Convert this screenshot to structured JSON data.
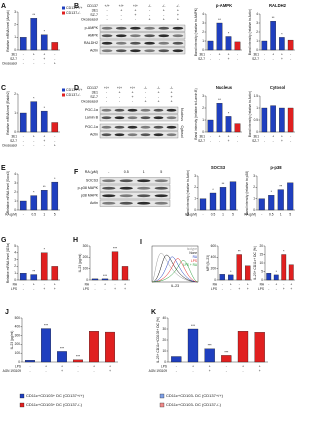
{
  "chart_data": [
    {
      "type": "bar",
      "panel": "A",
      "ylabel": "Relative mRNA level (Ampk)",
      "ylim": [
        0,
        3
      ],
      "yticks": [
        0,
        1,
        2,
        3
      ],
      "series": [
        {
          "name": "CD137+/+",
          "color": "#1f3fbf",
          "values": [
            1,
            2.5,
            1.2,
            null
          ]
        },
        {
          "name": "CD137-/-",
          "color": "#e02020",
          "values": [
            null,
            null,
            null,
            0.6
          ]
        }
      ],
      "conditions": [
        {
          "label": "3E1",
          "marks": [
            "-",
            "+",
            "+",
            "-"
          ]
        },
        {
          "label": "SZ-7",
          "marks": [
            "-",
            "-",
            "+",
            "-"
          ]
        },
        {
          "label": "Oxozeasol",
          "marks": [
            "-",
            "-",
            "-",
            "+"
          ]
        }
      ],
      "annotations": [
        "**",
        "*"
      ]
    },
    {
      "type": "blot",
      "panel": "B",
      "header": {
        "label": "CD137",
        "lanes": [
          "+/+",
          "+/+",
          "+/+",
          "-/-",
          "-/-",
          "-/-"
        ]
      },
      "conditions": [
        {
          "label": "3E1",
          "marks": [
            "-",
            "+",
            "+",
            "-",
            "+",
            "+"
          ]
        },
        {
          "label": "SZ-7",
          "marks": [
            "-",
            "-",
            "+",
            "-",
            "-",
            "+"
          ]
        },
        {
          "label": "Oxozeasol",
          "marks": [
            "-",
            "-",
            "-",
            "+",
            "+",
            "+"
          ]
        }
      ],
      "sections": [
        {
          "rows": [
            "p-AMPK",
            "AMPK",
            "RALDH2",
            "Actin"
          ]
        }
      ]
    },
    {
      "type": "bar",
      "title": "p-AMPK",
      "ylabel": "Band intensity (relative to AMPK)",
      "ylim": [
        0,
        4
      ],
      "yticks": [
        0,
        1,
        2,
        3,
        4
      ],
      "series": [
        {
          "color": "#1f3fbf",
          "values": [
            1,
            3,
            1.5,
            null
          ]
        },
        {
          "color": "#e02020",
          "values": [
            null,
            null,
            null,
            0.9
          ]
        }
      ],
      "conditions": [
        {
          "label": "3E1",
          "marks": [
            "-",
            "+",
            "+",
            "-"
          ]
        },
        {
          "label": "SZ-7",
          "marks": [
            "-",
            "-",
            "+",
            "-"
          ]
        }
      ],
      "annotations": [
        "**",
        "*"
      ]
    },
    {
      "type": "bar",
      "title": "RALDH2",
      "ylabel": "Band intensity (relative to Actin)",
      "ylim": [
        0,
        4
      ],
      "yticks": [
        0,
        1,
        2,
        3,
        4
      ],
      "series": [
        {
          "color": "#1f3fbf",
          "values": [
            1,
            3.2,
            1.4,
            null
          ]
        },
        {
          "color": "#e02020",
          "values": [
            null,
            null,
            null,
            1.1
          ]
        }
      ],
      "conditions": [
        {
          "label": "3E1",
          "marks": [
            "-",
            "+",
            "+",
            "-"
          ]
        },
        {
          "label": "SZ-7",
          "marks": [
            "-",
            "-",
            "+",
            "-"
          ]
        }
      ],
      "annotations": [
        "**",
        "*"
      ]
    },
    {
      "type": "bar",
      "panel": "C",
      "ylabel": "Relative mRNA level (Raldh2)",
      "ylim": [
        0,
        2
      ],
      "yticks": [
        0,
        1,
        2
      ],
      "series": [
        {
          "name": "CD137+/+",
          "color": "#1f3fbf",
          "values": [
            1,
            1.6,
            1.1,
            null
          ]
        },
        {
          "name": "CD137-/-",
          "color": "#e02020",
          "values": [
            null,
            null,
            null,
            0.5
          ]
        }
      ],
      "conditions": [
        {
          "label": "3E1",
          "marks": [
            "-",
            "+",
            "+",
            "-"
          ]
        },
        {
          "label": "SZ-7",
          "marks": [
            "-",
            "-",
            "+",
            "-"
          ]
        },
        {
          "label": "Oxozeasol",
          "marks": [
            "-",
            "-",
            "-",
            "+"
          ]
        }
      ],
      "annotations": [
        "*",
        "*"
      ]
    },
    {
      "type": "blot",
      "panel": "D",
      "header": {
        "label": "CD137",
        "lanes": [
          "+/+",
          "+/+",
          "+/+",
          "-/-",
          "-/-",
          "-/-"
        ]
      },
      "conditions": [
        {
          "label": "3E1",
          "marks": [
            "-",
            "+",
            "+",
            "-",
            "+",
            "+"
          ]
        },
        {
          "label": "SZ-7",
          "marks": [
            "-",
            "-",
            "+",
            "-",
            "-",
            "+"
          ]
        },
        {
          "label": "Oxozeasol",
          "marks": [
            "-",
            "-",
            "-",
            "+",
            "+",
            "+"
          ]
        }
      ],
      "sections": [
        {
          "label": "Nucleus",
          "rows": [
            "PGC-1α",
            "Lamin B"
          ]
        },
        {
          "label": "Cytosol",
          "rows": [
            "PGC-1α",
            "Actin"
          ]
        }
      ]
    },
    {
      "type": "bar",
      "title": "Nucleus",
      "ylabel": "Band intensity (relative to Lamin B)",
      "ylim": [
        0,
        3
      ],
      "yticks": [
        0,
        1,
        2,
        3
      ],
      "series": [
        {
          "color": "#1f3fbf",
          "values": [
            1,
            2.4,
            1.3,
            null
          ]
        },
        {
          "color": "#e02020",
          "values": [
            null,
            null,
            null,
            0.7
          ]
        }
      ],
      "conditions": [
        {
          "label": "3E1",
          "marks": [
            "-",
            "+",
            "+",
            "-"
          ]
        },
        {
          "label": "SZ-7",
          "marks": [
            "-",
            "-",
            "+",
            "-"
          ]
        }
      ],
      "annotations": [
        "**",
        "*"
      ]
    },
    {
      "type": "bar",
      "title": "Cytosol",
      "ylabel": "Band intensity (relative to Actin)",
      "ylim": [
        0,
        1.5
      ],
      "yticks": [
        0,
        0.5,
        1,
        1.5
      ],
      "series": [
        {
          "color": "#1f3fbf",
          "values": [
            1,
            1.1,
            1,
            null
          ]
        },
        {
          "color": "#e02020",
          "values": [
            null,
            null,
            null,
            1
          ]
        }
      ],
      "conditions": [
        {
          "label": "3E1",
          "marks": [
            "-",
            "+",
            "+",
            "-"
          ]
        },
        {
          "label": "SZ-7",
          "marks": [
            "-",
            "-",
            "+",
            "-"
          ]
        }
      ]
    },
    {
      "type": "bar",
      "panel": "E",
      "ylabel": "Relative mRNA level (Socs3)",
      "ylim": [
        0,
        4
      ],
      "yticks": [
        0,
        1,
        2,
        3,
        4
      ],
      "series": [
        {
          "color": "#1f3fbf",
          "values": [
            1,
            1.6,
            2.2,
            3.1
          ]
        }
      ],
      "conditions": [
        {
          "label": "RA (μM)",
          "marks": [
            "-",
            "0.5",
            "1",
            "5"
          ]
        }
      ],
      "annotations": [
        "*",
        "**",
        "*"
      ]
    },
    {
      "type": "blot",
      "panel": "F",
      "header": {
        "label": "RA (μM)",
        "lanes": [
          "-",
          "0.5",
          "1",
          "5"
        ]
      },
      "conditions": [],
      "sections": [
        {
          "rows": [
            "SOCS3",
            "p-p38 MAPK",
            "p38 MAPK",
            "Actin"
          ]
        }
      ]
    },
    {
      "type": "bar",
      "title": "SOCS3",
      "ylabel": "Band intensity (relative to Actin)",
      "ylim": [
        0,
        3
      ],
      "yticks": [
        0,
        1,
        2,
        3
      ],
      "series": [
        {
          "color": "#1f3fbf",
          "values": [
            1,
            1.5,
            2,
            2.5
          ]
        }
      ],
      "conditions": [
        {
          "label": "RA (μM)",
          "marks": [
            "-",
            "0.5",
            "1",
            "5"
          ]
        }
      ],
      "annotations": [
        "*",
        "**"
      ]
    },
    {
      "type": "bar",
      "title": "p-p38",
      "ylabel": "Band intensity (relative to p38)",
      "ylim": [
        0,
        3
      ],
      "yticks": [
        0,
        1,
        2,
        3
      ],
      "series": [
        {
          "color": "#1f3fbf",
          "values": [
            1,
            1.3,
            1.8,
            2.4
          ]
        }
      ],
      "conditions": [
        {
          "label": "RA (μM)",
          "marks": [
            "-",
            "0.5",
            "1",
            "5"
          ]
        }
      ],
      "annotations": [
        "*",
        "**"
      ]
    },
    {
      "type": "bar",
      "panel": "G",
      "ylabel": "Relative mRNA level (Il23a)",
      "ylim": [
        0,
        5
      ],
      "yticks": [
        0,
        1,
        2,
        3,
        4,
        5
      ],
      "series": [
        {
          "color": "#1f3fbf",
          "values": [
            1,
            0.8,
            null,
            null
          ]
        },
        {
          "color": "#e02020",
          "values": [
            null,
            null,
            4,
            2
          ]
        }
      ],
      "conditions": [
        {
          "label": "RA",
          "marks": [
            "-",
            "+",
            "-",
            "+"
          ]
        },
        {
          "label": "LPS",
          "marks": [
            "-",
            "-",
            "+",
            "+"
          ]
        }
      ],
      "annotations": [
        "**",
        "*"
      ]
    },
    {
      "type": "bar",
      "panel": "H",
      "ylabel": "IL-23 (pg/ml)",
      "ylim": [
        0,
        300
      ],
      "yticks": [
        0,
        100,
        200,
        300
      ],
      "series": [
        {
          "color": "#1f3fbf",
          "values": [
            10,
            10,
            null,
            null
          ]
        },
        {
          "color": "#e02020",
          "values": [
            null,
            null,
            250,
            120
          ]
        }
      ],
      "conditions": [
        {
          "label": "RA",
          "marks": [
            "-",
            "+",
            "-",
            "+"
          ]
        },
        {
          "label": "LPS",
          "marks": [
            "-",
            "-",
            "+",
            "+"
          ]
        }
      ],
      "annotations": [
        "***",
        "***"
      ]
    },
    {
      "type": "flow",
      "panel": "I",
      "xlabel": "IL-23",
      "series": [
        {
          "name": "Isotype",
          "color": "#999999"
        },
        {
          "name": "None",
          "color": "#111111"
        },
        {
          "name": "RA",
          "color": "#1f3fbf"
        },
        {
          "name": "LPS",
          "color": "#e02020"
        },
        {
          "name": "LPS + RA",
          "color": "#2a9d3a"
        }
      ]
    },
    {
      "type": "bar",
      "ylabel": "MFI (IL-23)",
      "ylim": [
        0,
        600
      ],
      "yticks": [
        0,
        200,
        400,
        600
      ],
      "series": [
        {
          "color": "#1f3fbf",
          "values": [
            100,
            90,
            null,
            null
          ]
        },
        {
          "color": "#e02020",
          "values": [
            null,
            null,
            450,
            250
          ]
        }
      ],
      "conditions": [
        {
          "label": "RA",
          "marks": [
            "-",
            "+",
            "-",
            "+"
          ]
        },
        {
          "label": "LPS",
          "marks": [
            "-",
            "-",
            "+",
            "+"
          ]
        }
      ],
      "annotations": [
        "*",
        "**"
      ]
    },
    {
      "type": "bar",
      "ylabel": "IL-23+ CD11c+ DC (%)",
      "ylim": [
        0,
        20
      ],
      "yticks": [
        0,
        5,
        10,
        15,
        20
      ],
      "series": [
        {
          "color": "#1f3fbf",
          "values": [
            4,
            3,
            null,
            null
          ]
        },
        {
          "color": "#e02020",
          "values": [
            null,
            null,
            15,
            9
          ]
        }
      ],
      "conditions": [
        {
          "label": "RA",
          "marks": [
            "-",
            "+",
            "-",
            "+"
          ]
        },
        {
          "label": "LPS",
          "marks": [
            "-",
            "-",
            "+",
            "+"
          ]
        }
      ],
      "annotations": [
        "*",
        "*"
      ]
    },
    {
      "type": "bar",
      "panel": "J",
      "ylabel": "IL-23 (pg/ml)",
      "ylim": [
        0,
        500
      ],
      "yticks": [
        0,
        100,
        200,
        300,
        400,
        500
      ],
      "series": [
        {
          "color": "#1f3fbf",
          "values": [
            20,
            380,
            120,
            null,
            null,
            null
          ]
        },
        {
          "color": "#e02020",
          "values": [
            null,
            null,
            null,
            25,
            350,
            340
          ]
        }
      ],
      "conditions": [
        {
          "label": "LPS",
          "marks": [
            "-",
            "+",
            "+",
            "-",
            "+",
            "+"
          ]
        },
        {
          "label": "AGN 193109",
          "marks": [
            "-",
            "-",
            "+",
            "-",
            "-",
            "+"
          ]
        }
      ],
      "annotations": [
        "***",
        "***",
        "***"
      ]
    },
    {
      "type": "bar",
      "panel": "K",
      "ylabel": "IL-23+ CD11c+CD103+ DC (%)",
      "ylim": [
        0,
        40
      ],
      "yticks": [
        0,
        10,
        20,
        30,
        40
      ],
      "series": [
        {
          "color": "#1f3fbf",
          "values": [
            5,
            30,
            12,
            null,
            null,
            null
          ]
        },
        {
          "color": "#e02020",
          "values": [
            null,
            null,
            null,
            6,
            28,
            27
          ]
        }
      ],
      "conditions": [
        {
          "label": "LPS",
          "marks": [
            "-",
            "+",
            "+",
            "-",
            "+",
            "+"
          ]
        },
        {
          "label": "AGN 193109",
          "marks": [
            "-",
            "-",
            "+",
            "-",
            "-",
            "+"
          ]
        }
      ],
      "annotations": [
        "***",
        "***",
        "***"
      ]
    }
  ],
  "legend": [
    {
      "label": "CD11c+CD103+ DC (CD137+/+)",
      "color": "#1f3fbf"
    },
    {
      "label": "CD11c+CD103- DC (CD137+/+)",
      "color": "#7fa0e6"
    },
    {
      "label": "CD11c+CD103+ DC (CD137-/-)",
      "color": "#e02020"
    },
    {
      "label": "CD11c+CD103- DC (CD137-/-)",
      "color": "#f08a8a"
    }
  ]
}
